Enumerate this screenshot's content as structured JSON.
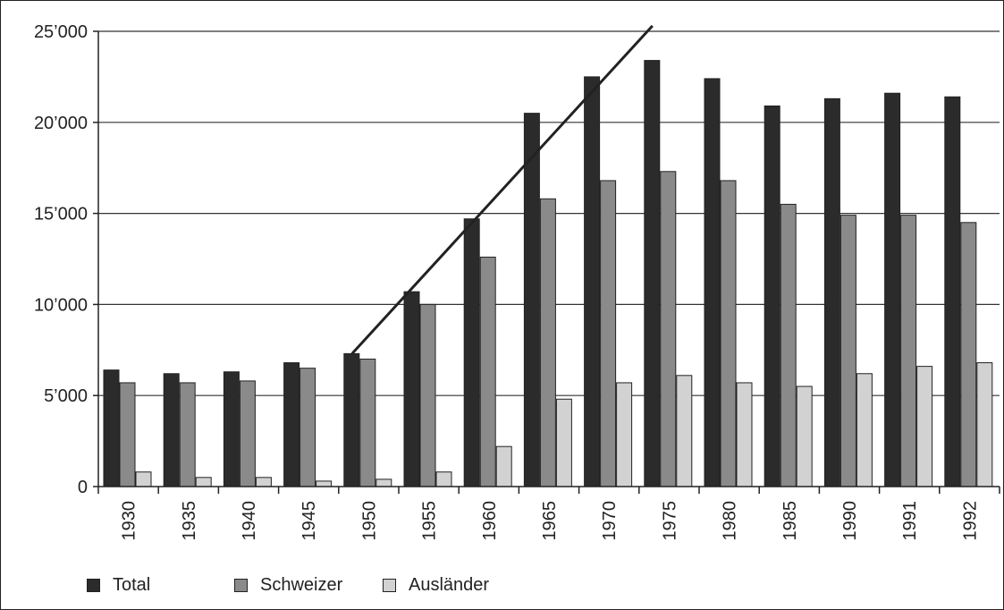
{
  "chart_data": {
    "type": "bar",
    "categories": [
      "1930",
      "1935",
      "1940",
      "1945",
      "1950",
      "1955",
      "1960",
      "1965",
      "1970",
      "1975",
      "1980",
      "1985",
      "1990",
      "1991",
      "1992"
    ],
    "series": [
      {
        "name": "Total",
        "color": "#2b2b2b",
        "values": [
          6400,
          6200,
          6300,
          6800,
          7300,
          10700,
          14700,
          20500,
          22500,
          23400,
          22400,
          20900,
          21300,
          21600,
          21400
        ]
      },
      {
        "name": "Schweizer",
        "color": "#8a8a8a",
        "values": [
          5700,
          5700,
          5800,
          6500,
          7000,
          10000,
          12600,
          15800,
          16800,
          17300,
          16800,
          15500,
          14900,
          14900,
          14500
        ]
      },
      {
        "name": "Ausländer",
        "color": "#d2d2d2",
        "values": [
          800,
          500,
          500,
          300,
          400,
          800,
          2200,
          4800,
          5700,
          6100,
          5700,
          5500,
          6200,
          6600,
          6800
        ]
      }
    ],
    "yticks": [
      "0",
      "5’000",
      "10’000",
      "15’000",
      "20’000",
      "25’000"
    ],
    "ytick_values": [
      0,
      5000,
      10000,
      15000,
      20000,
      25000
    ],
    "ylim": [
      0,
      25000
    ],
    "trend_line": {
      "from": {
        "x": "1950",
        "y": 7300
      },
      "to": {
        "x": "1975",
        "y": 25300
      }
    },
    "grid": true,
    "legend_position": "bottom-left"
  }
}
